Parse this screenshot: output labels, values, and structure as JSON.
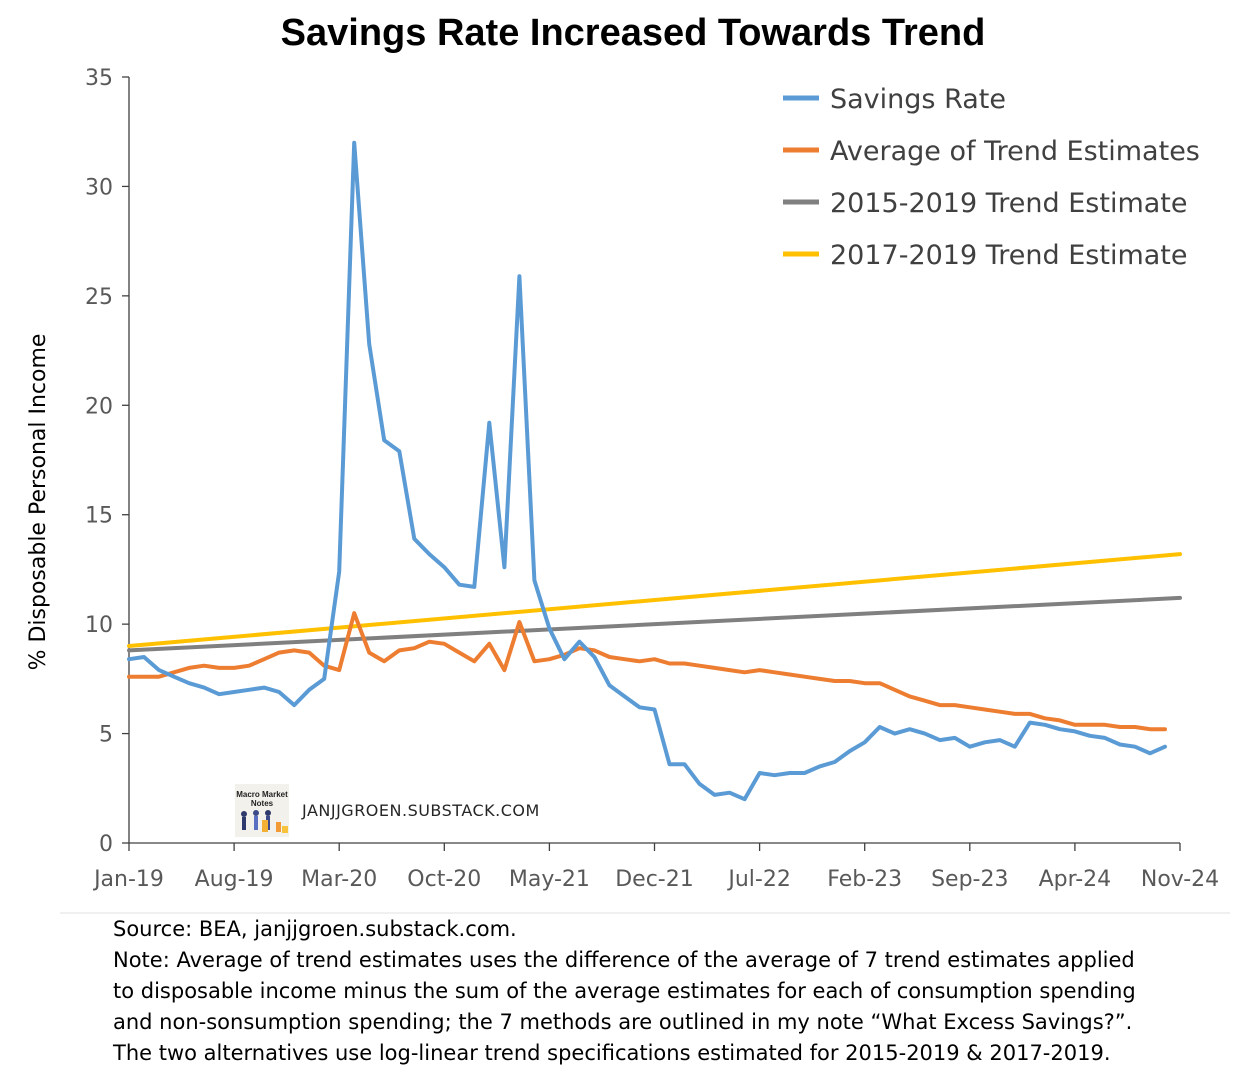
{
  "chart_data": {
    "type": "line",
    "title": "Savings Rate Increased Towards Trend",
    "ylabel": "% Disposable Personal Income",
    "xlabel": "",
    "ylim": [
      0,
      35
    ],
    "yticks": [
      "0",
      "5",
      "10",
      "15",
      "20",
      "25",
      "30",
      "35"
    ],
    "xticks": [
      "Jan-19",
      "Aug-19",
      "Mar-20",
      "Oct-20",
      "May-21",
      "Dec-21",
      "Jul-22",
      "Feb-23",
      "Sep-23",
      "Apr-24",
      "Nov-24"
    ],
    "grid": false,
    "legend_position": "top-right",
    "series": [
      {
        "name": "Savings Rate",
        "color": "#5b9bd5",
        "values": [
          8.4,
          8.5,
          7.9,
          7.6,
          7.3,
          7.1,
          6.8,
          6.9,
          7.0,
          7.1,
          6.9,
          6.3,
          7.0,
          7.5,
          12.4,
          32.0,
          22.8,
          18.4,
          17.9,
          13.9,
          13.2,
          12.6,
          11.8,
          11.7,
          19.2,
          12.6,
          25.9,
          12.0,
          9.8,
          8.4,
          9.2,
          8.5,
          7.2,
          6.7,
          6.2,
          6.1,
          3.6,
          3.6,
          2.7,
          2.2,
          2.3,
          2.0,
          3.2,
          3.1,
          3.2,
          3.2,
          3.5,
          3.7,
          4.2,
          4.6,
          5.3,
          5.0,
          5.2,
          5.0,
          4.7,
          4.8,
          4.4,
          4.6,
          4.7,
          4.4,
          5.5,
          5.4,
          5.2,
          5.1,
          4.9,
          4.8,
          4.5,
          4.4,
          4.1,
          4.4
        ]
      },
      {
        "name": "Average of Trend Estimates",
        "color": "#ed7d31",
        "values": [
          7.6,
          7.6,
          7.6,
          7.8,
          8.0,
          8.1,
          8.0,
          8.0,
          8.1,
          8.4,
          8.7,
          8.8,
          8.7,
          8.1,
          7.9,
          10.5,
          8.7,
          8.3,
          8.8,
          8.9,
          9.2,
          9.1,
          8.7,
          8.3,
          9.1,
          7.9,
          10.1,
          8.3,
          8.4,
          8.6,
          8.9,
          8.8,
          8.5,
          8.4,
          8.3,
          8.4,
          8.2,
          8.2,
          8.1,
          8.0,
          7.9,
          7.8,
          7.9,
          7.8,
          7.7,
          7.6,
          7.5,
          7.4,
          7.4,
          7.3,
          7.3,
          7.0,
          6.7,
          6.5,
          6.3,
          6.3,
          6.2,
          6.1,
          6.0,
          5.9,
          5.9,
          5.7,
          5.6,
          5.4,
          5.4,
          5.4,
          5.3,
          5.3,
          5.2,
          5.2
        ]
      },
      {
        "name": "2015-2019 Trend Estimate",
        "color": "#808080",
        "values": [
          8.8,
          11.2
        ]
      },
      {
        "name": "2017-2019 Trend Estimate",
        "color": "#ffc000",
        "values": [
          9.0,
          13.2
        ]
      }
    ]
  },
  "brand": {
    "logo_text": [
      "Macro Market",
      "Notes"
    ],
    "site": "JANJJGROEN.SUBSTACK.COM"
  },
  "notes": {
    "lines": [
      "Source: BEA, janjjgroen.substack.com.",
      "Note: Average of trend estimates uses the difference of the average of 7 trend estimates applied",
      "to disposable income minus the sum of the average estimates for each of consumption spending",
      "and non-sonsumption spending; the 7 methods are outlined in my note “What Excess Savings?”.",
      "The two alternatives use log-linear trend specifications estimated for 2015-2019 & 2017-2019."
    ]
  }
}
